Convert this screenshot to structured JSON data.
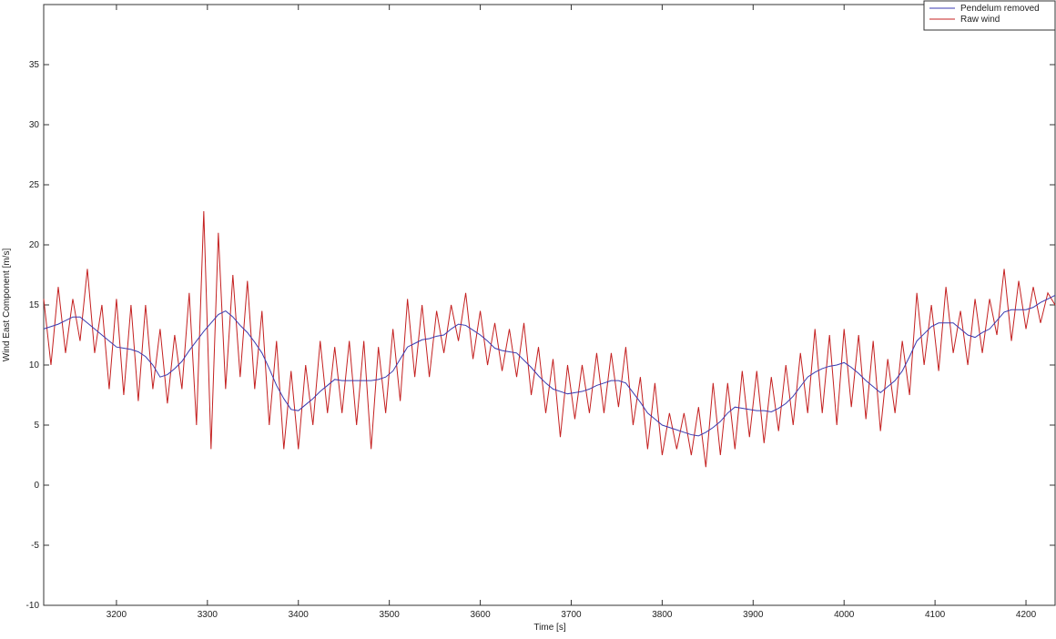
{
  "chart_data": {
    "type": "line",
    "x_label": "Time [s]",
    "y_label": "Wind East Component [m/s]",
    "xlim": [
      3120,
      4232
    ],
    "ylim": [
      -10,
      40
    ],
    "xticks": [
      3200,
      3300,
      3400,
      3500,
      3600,
      3700,
      3800,
      3900,
      4000,
      4100,
      4200
    ],
    "yticks": [
      -10,
      -5,
      0,
      5,
      10,
      15,
      20,
      25,
      30,
      35
    ],
    "grid": false,
    "legend_position": "top-right",
    "x": [
      3120,
      3128,
      3136,
      3144,
      3152,
      3160,
      3168,
      3176,
      3184,
      3192,
      3200,
      3208,
      3216,
      3224,
      3232,
      3240,
      3248,
      3256,
      3264,
      3272,
      3280,
      3288,
      3296,
      3304,
      3312,
      3320,
      3328,
      3336,
      3344,
      3352,
      3360,
      3368,
      3376,
      3384,
      3392,
      3400,
      3408,
      3416,
      3424,
      3432,
      3440,
      3448,
      3456,
      3464,
      3472,
      3480,
      3488,
      3496,
      3504,
      3512,
      3520,
      3528,
      3536,
      3544,
      3552,
      3560,
      3568,
      3576,
      3584,
      3592,
      3600,
      3608,
      3616,
      3624,
      3632,
      3640,
      3648,
      3656,
      3664,
      3672,
      3680,
      3688,
      3696,
      3704,
      3712,
      3720,
      3728,
      3736,
      3744,
      3752,
      3760,
      3768,
      3776,
      3784,
      3792,
      3800,
      3808,
      3816,
      3824,
      3832,
      3840,
      3848,
      3856,
      3864,
      3872,
      3880,
      3888,
      3896,
      3904,
      3912,
      3920,
      3928,
      3936,
      3944,
      3952,
      3960,
      3968,
      3976,
      3984,
      3992,
      4000,
      4008,
      4016,
      4024,
      4032,
      4040,
      4048,
      4056,
      4064,
      4072,
      4080,
      4088,
      4096,
      4104,
      4112,
      4120,
      4128,
      4136,
      4144,
      4152,
      4160,
      4168,
      4176,
      4184,
      4192,
      4200,
      4208,
      4216,
      4224,
      4232
    ],
    "series": [
      {
        "name": "Pendelum removed",
        "color": "#3a3ab0",
        "values": [
          13,
          13.2,
          13.4,
          13.7,
          14,
          14,
          13.5,
          13,
          12.5,
          12,
          11.5,
          11.4,
          11.3,
          11.1,
          10.7,
          10,
          9,
          9.2,
          9.7,
          10.3,
          11.2,
          12,
          12.8,
          13.5,
          14.2,
          14.5,
          14,
          13.3,
          12.7,
          11.9,
          11,
          9.7,
          8.3,
          7.2,
          6.3,
          6.2,
          6.7,
          7.2,
          7.8,
          8.3,
          8.8,
          8.7,
          8.7,
          8.7,
          8.7,
          8.7,
          8.8,
          9,
          9.5,
          10.5,
          11.5,
          11.8,
          12.1,
          12.2,
          12.4,
          12.5,
          13,
          13.4,
          13.3,
          12.9,
          12.5,
          12,
          11.4,
          11.2,
          11.1,
          11,
          10.4,
          9.8,
          9.1,
          8.5,
          8,
          7.8,
          7.6,
          7.7,
          7.8,
          8,
          8.3,
          8.5,
          8.7,
          8.7,
          8.5,
          7.7,
          6.9,
          6,
          5.5,
          5,
          4.8,
          4.6,
          4.4,
          4.2,
          4.1,
          4.4,
          4.8,
          5.3,
          6,
          6.5,
          6.4,
          6.3,
          6.2,
          6.2,
          6.1,
          6.4,
          6.8,
          7.4,
          8.2,
          9,
          9.4,
          9.7,
          9.9,
          10,
          10.2,
          9.8,
          9.3,
          8.7,
          8.2,
          7.7,
          8.2,
          8.7,
          9.5,
          10.7,
          12,
          12.6,
          13.2,
          13.5,
          13.5,
          13.5,
          13,
          12.5,
          12.3,
          12.7,
          13,
          13.7,
          14.4,
          14.6,
          14.6,
          14.6,
          14.8,
          15.2,
          15.5,
          15.8
        ]
      },
      {
        "name": "Raw wind",
        "color": "#c42020",
        "values": [
          15.5,
          10,
          16.5,
          11,
          15.5,
          12,
          18,
          11,
          15,
          8,
          15.5,
          7.5,
          15,
          7,
          15,
          8,
          13,
          6.8,
          12.5,
          8,
          16,
          5,
          22.8,
          3,
          21,
          8,
          17.5,
          9,
          17,
          8,
          14.5,
          5,
          12,
          3,
          9.5,
          3,
          10,
          5,
          12,
          6,
          11.5,
          6,
          12,
          5,
          12,
          3,
          11.5,
          6,
          13,
          7,
          15.5,
          9,
          15,
          9,
          14.5,
          11,
          15,
          12,
          16,
          10.5,
          14.5,
          10,
          13.5,
          9.5,
          13,
          9,
          13.5,
          7.5,
          11.5,
          6,
          10.5,
          4,
          10,
          5.5,
          10,
          6,
          11,
          6,
          11,
          6.5,
          11.5,
          5,
          9,
          3,
          8.5,
          2.5,
          6,
          3,
          6,
          2.5,
          6.5,
          1.5,
          8.5,
          2.5,
          8.5,
          3,
          9.5,
          4,
          9.5,
          3.5,
          9,
          4.5,
          10,
          5,
          11,
          6,
          13,
          6,
          12.5,
          5,
          13,
          6.5,
          12.5,
          5.5,
          12,
          4.5,
          10.5,
          6,
          12,
          7.5,
          16,
          10,
          15,
          9.5,
          16.5,
          11,
          14.5,
          10,
          15.5,
          11,
          15.5,
          12.5,
          18,
          12,
          17,
          13,
          16.5,
          13.5,
          16,
          15
        ]
      }
    ]
  }
}
